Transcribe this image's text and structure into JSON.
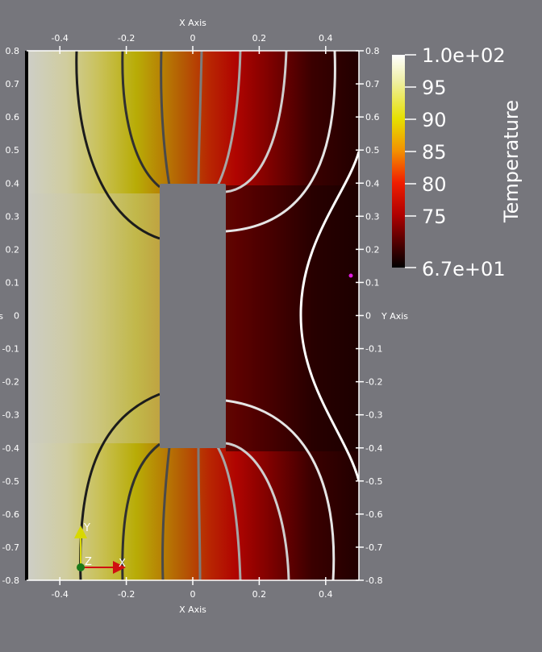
{
  "axes": {
    "x_title": "X Axis",
    "y_title": "Y Axis",
    "y_title_left_fragment": "s",
    "x_ticks": [
      -0.4,
      -0.2,
      0,
      0.2,
      0.4
    ],
    "x_tick_labels": [
      "-0.4",
      "-0.2",
      "0",
      "0.2",
      "0.4"
    ],
    "y_ticks": [
      0.8,
      0.7,
      0.6,
      0.5,
      0.4,
      0.3,
      0.2,
      0.1,
      0,
      -0.1,
      -0.2,
      -0.3,
      -0.4,
      -0.5,
      -0.6,
      -0.7,
      -0.8
    ],
    "y_tick_labels": [
      "0.8",
      "0.7",
      "0.6",
      "0.5",
      "0.4",
      "0.3",
      "0.2",
      "0.1",
      "0",
      "-0.1",
      "-0.2",
      "-0.3",
      "-0.4",
      "-0.5",
      "-0.6",
      "-0.7",
      "-0.8"
    ],
    "x_range": [
      -0.5,
      0.5
    ],
    "y_range": [
      -0.8,
      0.8
    ]
  },
  "domain": {
    "obstacle": {
      "x": [
        -0.1,
        0.1
      ],
      "y": [
        -0.4,
        0.4
      ]
    }
  },
  "scalar_bar": {
    "title": "Temperature",
    "range": [
      67,
      100
    ],
    "max_label": "1.0e+02",
    "min_label": "6.7e+01",
    "labels": [
      "95",
      "90",
      "85",
      "80",
      "75"
    ],
    "label_values": [
      95,
      90,
      85,
      80,
      75
    ]
  },
  "orientation_axes": {
    "x_label": "X",
    "y_label": "Y",
    "z_label": "Z"
  },
  "colors": {
    "background": "#76767c",
    "obstacle": "#76767c",
    "marker": "#e11be1"
  }
}
